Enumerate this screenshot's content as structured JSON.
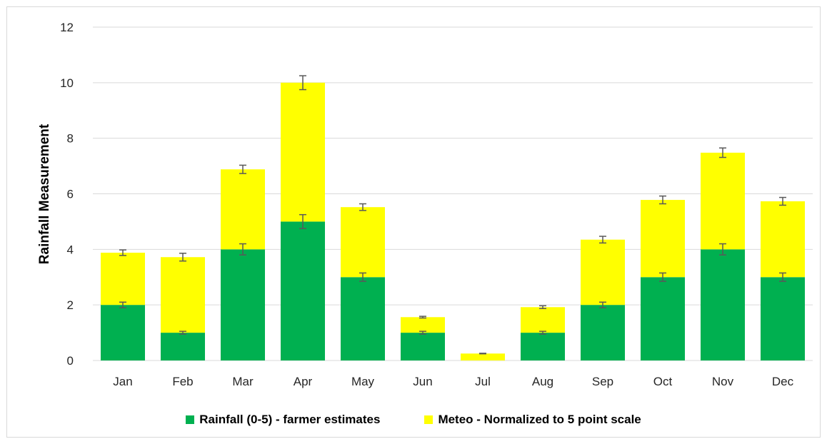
{
  "chart_data": {
    "type": "bar",
    "stacked": true,
    "categories": [
      "Jan",
      "Feb",
      "Mar",
      "Apr",
      "May",
      "Jun",
      "Jul",
      "Aug",
      "Sep",
      "Oct",
      "Nov",
      "Dec"
    ],
    "series": [
      {
        "name": "Rainfall (0-5) - farmer estimates",
        "color": "#00b050",
        "values": [
          2,
          1,
          4,
          5,
          3,
          1,
          0,
          1,
          2,
          3,
          4,
          3
        ],
        "error": [
          0.1,
          0.05,
          0.2,
          0.25,
          0.15,
          0.05,
          0,
          0.05,
          0.1,
          0.15,
          0.2,
          0.15
        ]
      },
      {
        "name": "Meteo - Normalized to 5 point scale",
        "color": "#ffff00",
        "values": [
          1.88,
          2.72,
          2.88,
          5.0,
          2.52,
          0.56,
          0.25,
          0.92,
          2.35,
          2.78,
          3.48,
          2.73
        ],
        "error": [
          0.1,
          0.14,
          0.15,
          0.25,
          0.12,
          0.03,
          0.01,
          0.05,
          0.12,
          0.14,
          0.17,
          0.14
        ]
      }
    ],
    "ylabel": "Rainfall Measurement",
    "xlabel": "",
    "ylim": [
      0,
      12
    ],
    "yticks": [
      "0",
      "2",
      "4",
      "6",
      "8",
      "10",
      "12"
    ],
    "grid": true,
    "legend_position": "bottom"
  }
}
